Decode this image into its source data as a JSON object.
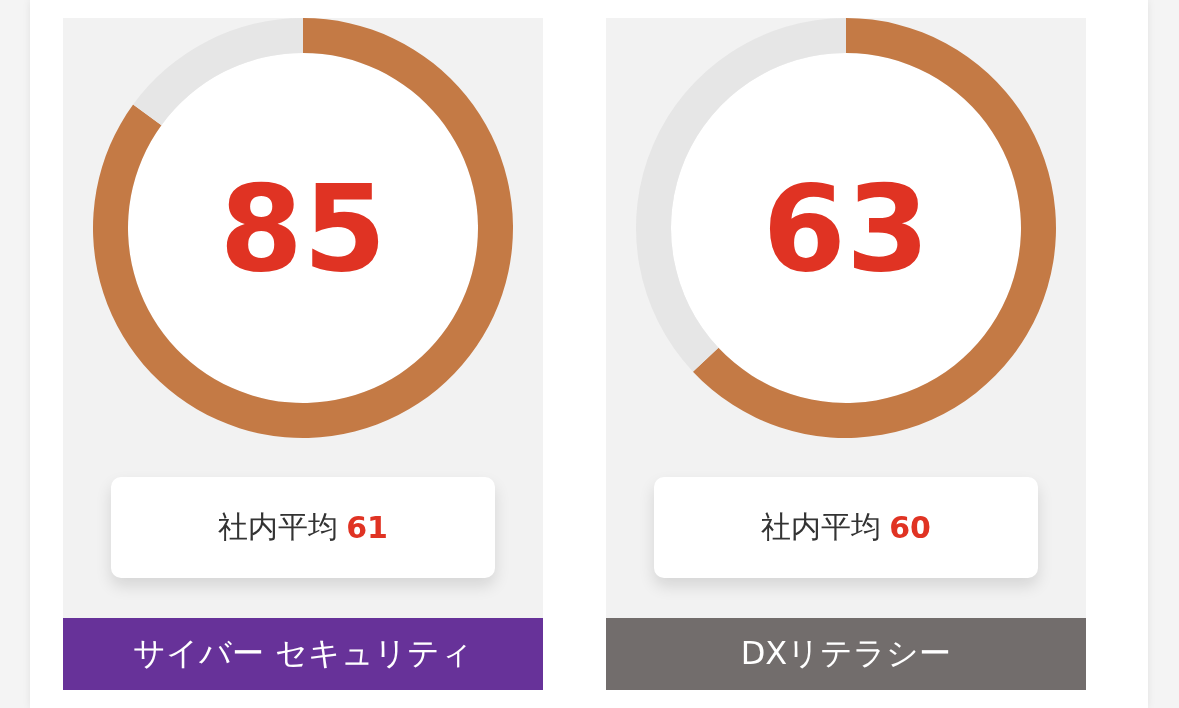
{
  "chart_data": [
    {
      "type": "donut",
      "title": "サイバー セキュリティ",
      "categories": [
        null,
        null
      ],
      "values": [
        85,
        15
      ],
      "colors": [
        "#c47a45",
        "#e6e6e6"
      ],
      "annotations": [
        "85",
        "社内平均 61"
      ]
    },
    {
      "type": "donut",
      "title": "DXリテラシー",
      "categories": [
        null,
        null
      ],
      "values": [
        63,
        37
      ],
      "colors": [
        "#c47a45",
        "#e6e6e6"
      ],
      "annotations": [
        "63",
        "社内平均 60"
      ]
    }
  ]
}
